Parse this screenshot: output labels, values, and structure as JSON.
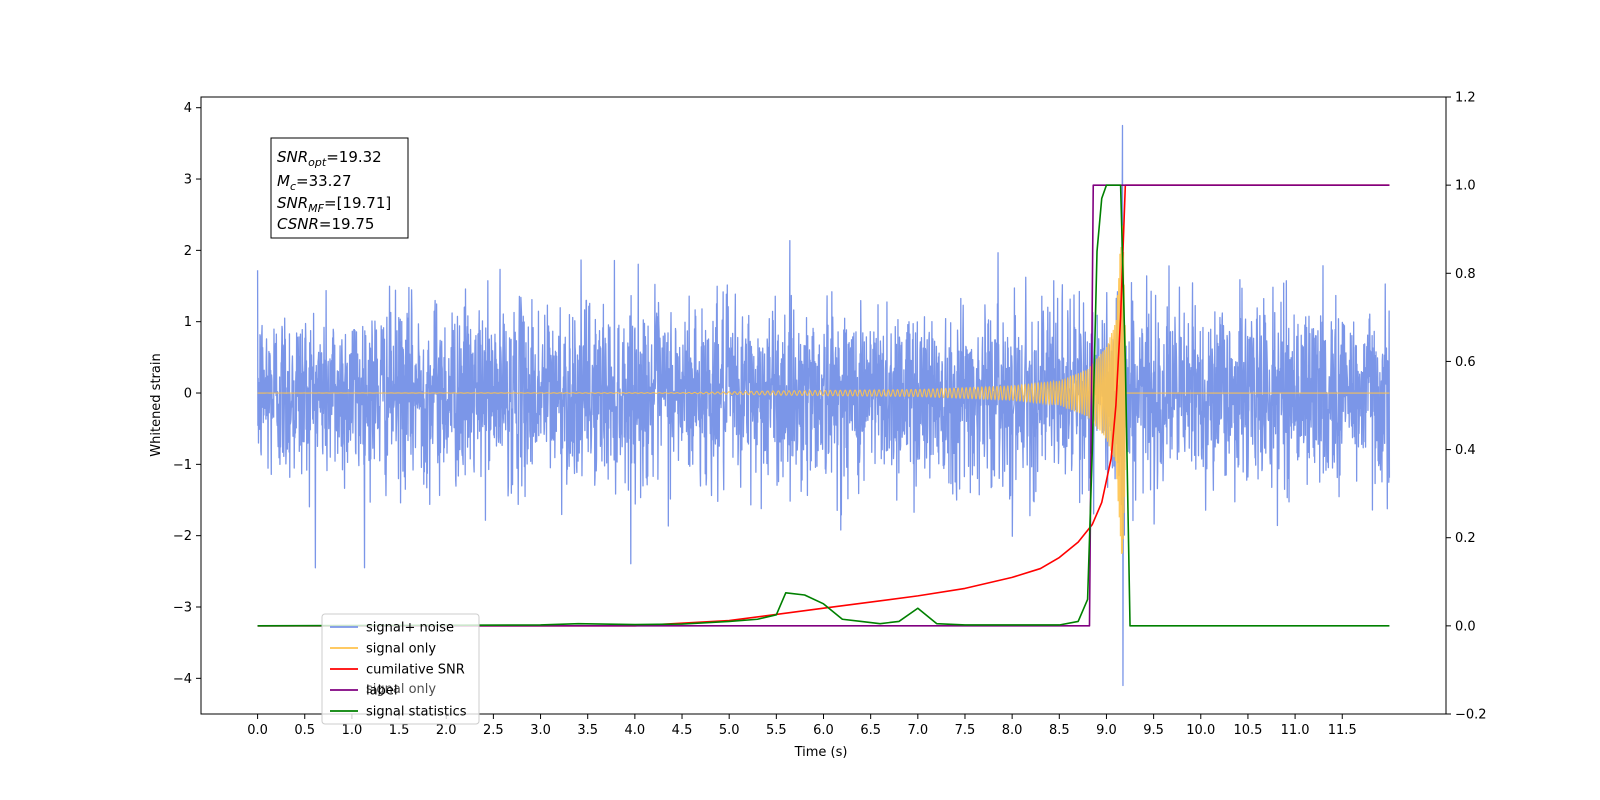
{
  "chart_data": {
    "type": "line",
    "xlabel": "Time (s)",
    "ylabel": "Whitened strain",
    "xlim": [
      -0.6,
      12.6
    ],
    "ylim": [
      -4.5,
      4.15
    ],
    "y2lim": [
      -0.2,
      1.2
    ],
    "x_ticks": [
      "0.0",
      "0.5",
      "1.0",
      "1.5",
      "2.0",
      "2.5",
      "3.0",
      "3.5",
      "4.0",
      "4.5",
      "5.0",
      "5.5",
      "6.0",
      "6.5",
      "7.0",
      "7.5",
      "8.0",
      "8.5",
      "9.0",
      "9.5",
      "10.0",
      "10.5",
      "11.0",
      "11.5"
    ],
    "y_ticks": [
      "4",
      "3",
      "2",
      "1",
      "0",
      "−1",
      "−2",
      "−3",
      "−4"
    ],
    "y2_ticks": [
      "1.2",
      "1.0",
      "0.8",
      "0.6",
      "0.4",
      "0.2",
      "0.0",
      "−0.2"
    ],
    "stats_box": {
      "snr_opt": "=19.32",
      "mc": "=33.27",
      "snr_mf": "=[19.71]",
      "csnr": "=19.75"
    },
    "legend": {
      "location": "lower-left",
      "entries": [
        {
          "label": "signal+ noise",
          "color": "#7b96e8"
        },
        {
          "label": "signal only",
          "color": "#ffc34d"
        },
        {
          "label": "cumilative SNR",
          "color": "#ff0000"
        },
        {
          "label": "label",
          "color": "#800080"
        },
        {
          "label": "signal statistics",
          "color": "#008000"
        }
      ],
      "overlap_text": "signal only"
    },
    "series": [
      {
        "name": "signal+ noise",
        "axis": "left",
        "color": "#7b96e8",
        "kind": "noise",
        "x_range": [
          0,
          12.0
        ],
        "std": 0.62,
        "approx_range": [
          -2.45,
          2.3
        ],
        "spike": {
          "x": 9.17,
          "max": 3.75,
          "min": -4.1
        }
      },
      {
        "name": "signal only",
        "axis": "left",
        "color": "#ffc34d",
        "kind": "chirp",
        "x_range": [
          0,
          12.0
        ],
        "merger_x": 9.2,
        "envelope_x": [
          0,
          4.5,
          5.5,
          7.0,
          8.0,
          8.5,
          8.8,
          9.0,
          9.1,
          9.17,
          9.22
        ],
        "envelope_y": [
          0,
          0.005,
          0.03,
          0.05,
          0.1,
          0.17,
          0.33,
          0.65,
          1.0,
          2.6,
          0
        ]
      },
      {
        "name": "cumilative SNR",
        "axis": "right",
        "color": "#ff0000",
        "x": [
          0,
          4.0,
          5.0,
          6.0,
          7.0,
          7.5,
          8.0,
          8.3,
          8.5,
          8.7,
          8.85,
          8.95,
          9.05,
          9.1,
          9.15,
          9.2,
          9.22,
          12.0
        ],
        "y": [
          0,
          0,
          0.012,
          0.04,
          0.068,
          0.085,
          0.11,
          0.13,
          0.155,
          0.19,
          0.23,
          0.28,
          0.38,
          0.5,
          0.7,
          1.0,
          1.0,
          1.0
        ]
      },
      {
        "name": "label",
        "axis": "right",
        "color": "#800080",
        "x": [
          0,
          8.82,
          8.86,
          9.2,
          9.22,
          12.0
        ],
        "y": [
          0,
          0,
          1.0,
          1.0,
          1.0,
          1.0
        ]
      },
      {
        "name": "signal statistics",
        "axis": "right",
        "color": "#008000",
        "x": [
          0,
          3.0,
          3.4,
          4.0,
          4.5,
          5.0,
          5.3,
          5.5,
          5.6,
          5.8,
          6.0,
          6.2,
          6.4,
          6.6,
          6.8,
          7.0,
          7.2,
          7.5,
          8.0,
          8.5,
          8.7,
          8.8,
          8.85,
          8.9,
          8.95,
          9.0,
          9.05,
          9.15,
          9.2,
          9.25,
          12.0
        ],
        "y": [
          0,
          0.002,
          0.005,
          0.003,
          0.004,
          0.01,
          0.015,
          0.025,
          0.075,
          0.07,
          0.05,
          0.015,
          0.01,
          0.005,
          0.01,
          0.04,
          0.005,
          0.002,
          0.002,
          0.002,
          0.01,
          0.06,
          0.4,
          0.85,
          0.97,
          1.0,
          1.0,
          1.0,
          0.6,
          0.0,
          0.0
        ]
      }
    ]
  }
}
